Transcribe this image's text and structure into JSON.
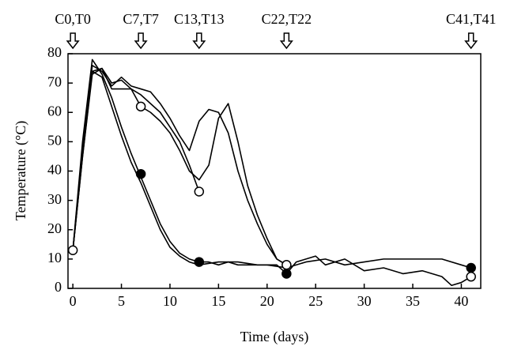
{
  "chart_data": {
    "type": "line",
    "xlabel": "Time (days)",
    "ylabel": "Temperature (°C)",
    "xlim": [
      -0.5,
      42
    ],
    "ylim": [
      0,
      80
    ],
    "xticks": [
      0,
      5,
      10,
      15,
      20,
      25,
      30,
      35,
      40
    ],
    "yticks": [
      0,
      10,
      20,
      30,
      40,
      50,
      60,
      70,
      80
    ],
    "annotations": [
      {
        "text": "C0,T0",
        "x": 0
      },
      {
        "text": "C7,T7",
        "x": 7
      },
      {
        "text": "C13,T13",
        "x": 13
      },
      {
        "text": "C22,T22",
        "x": 22
      },
      {
        "text": "C41,T41",
        "x": 41
      }
    ],
    "series": [
      {
        "color": "#000000",
        "x": [
          0,
          1,
          2,
          3,
          4,
          5,
          6,
          7,
          8,
          9,
          10,
          11,
          12,
          13,
          14,
          15,
          16,
          17,
          18,
          20,
          22,
          24,
          26,
          28,
          30,
          32,
          34,
          36,
          38,
          40,
          41
        ],
        "values": [
          13,
          50,
          78,
          73,
          65,
          55,
          46,
          38,
          30,
          22,
          16,
          12,
          10,
          9,
          9,
          8,
          9,
          8,
          8,
          8,
          7,
          9,
          10,
          8,
          9,
          10,
          10,
          10,
          10,
          8,
          7
        ]
      },
      {
        "color": "#000000",
        "x": [
          0,
          1,
          2,
          3,
          4,
          5,
          6,
          7,
          8,
          9,
          10,
          11,
          12,
          13,
          15,
          17,
          19,
          21,
          22,
          23,
          24,
          25,
          26,
          28,
          30,
          32,
          34,
          36,
          38,
          39,
          40,
          41
        ],
        "values": [
          13,
          45,
          74,
          72,
          62,
          52,
          43,
          36,
          28,
          20,
          14,
          11,
          9,
          8,
          9,
          9,
          8,
          8,
          5,
          9,
          10,
          11,
          8,
          10,
          6,
          7,
          5,
          6,
          4,
          1,
          2,
          4
        ]
      },
      {
        "color": "#000000",
        "x": [
          0,
          1,
          2,
          3,
          4,
          5,
          6,
          7,
          8,
          9,
          10,
          11,
          12,
          13
        ],
        "values": [
          13,
          45,
          73,
          75,
          70,
          71,
          68,
          66,
          63,
          60,
          55,
          50,
          42,
          33
        ]
      },
      {
        "color": "#000000",
        "x": [
          0,
          1,
          2,
          3,
          4,
          5,
          6,
          7,
          8,
          9,
          10,
          11,
          12,
          13,
          14,
          15,
          16,
          17,
          18,
          19,
          20,
          21,
          22
        ],
        "values": [
          13,
          48,
          76,
          74,
          69,
          72,
          69,
          68,
          67,
          63,
          58,
          52,
          47,
          57,
          61,
          60,
          53,
          40,
          30,
          22,
          15,
          10,
          8
        ]
      },
      {
        "color": "#000000",
        "x": [
          0,
          1,
          2,
          3,
          4,
          5,
          6,
          7,
          8,
          9,
          10,
          11,
          12,
          13,
          14,
          15,
          16,
          17,
          18,
          19,
          20,
          21,
          22
        ],
        "values": [
          13,
          46,
          74,
          75,
          68,
          68,
          68,
          62,
          60,
          57,
          53,
          47,
          40,
          37,
          42,
          58,
          63,
          50,
          35,
          25,
          17,
          10,
          8
        ]
      },
      {
        "color": "#ffffff",
        "marker": "circle",
        "x": [
          0,
          7,
          13,
          22,
          41
        ],
        "values": [
          13,
          62,
          33,
          8,
          4
        ]
      },
      {
        "color": "#000000",
        "marker": "circle",
        "x": [
          7,
          13,
          22,
          41
        ],
        "values": [
          39,
          9,
          5,
          7
        ]
      }
    ]
  }
}
